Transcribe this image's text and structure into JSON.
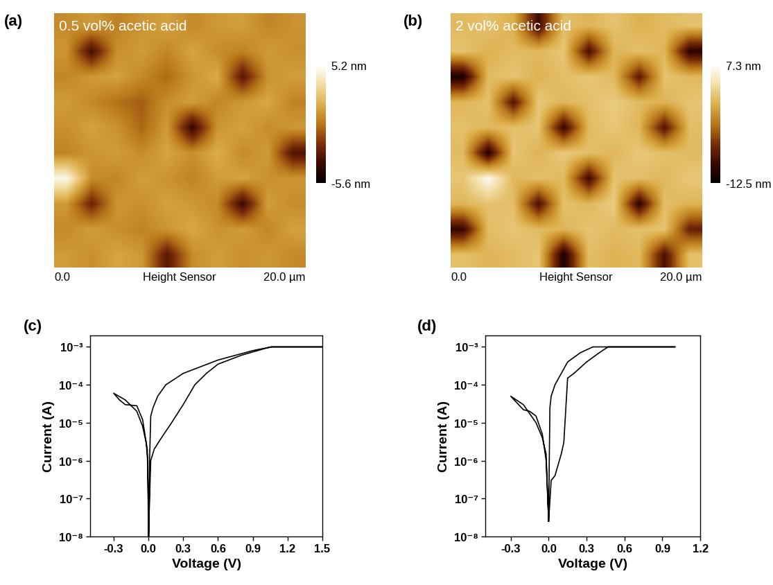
{
  "chart_data": [
    {
      "type": "heatmap",
      "panel_label": "(a)",
      "title": "0.5 vol% acetic acid",
      "x_labels": {
        "start": "0.0",
        "middle": "Height Sensor",
        "end": "20.0 µm"
      },
      "tick_labels": false,
      "xlim": [
        0,
        20
      ],
      "ylim": [
        0,
        20
      ],
      "cells": [
        [
          0.5,
          1.0,
          0.2,
          0.8,
          1.2,
          0.4,
          0.9,
          1.1,
          0.3,
          0.7
        ],
        [
          0.8,
          -3.5,
          0.6,
          1.0,
          0.3,
          1.3,
          0.5,
          0.2,
          1.0,
          0.6
        ],
        [
          0.3,
          0.9,
          1.2,
          0.4,
          -0.5,
          0.8,
          1.5,
          -3.0,
          0.7,
          1.1
        ],
        [
          1.0,
          0.4,
          -0.3,
          -0.8,
          0.6,
          1.1,
          0.3,
          0.9,
          1.4,
          0.2
        ],
        [
          0.6,
          1.2,
          0.7,
          -0.6,
          1.0,
          -4.0,
          0.8,
          1.2,
          0.5,
          0.9
        ],
        [
          0.2,
          0.8,
          1.0,
          0.5,
          1.3,
          0.6,
          1.6,
          0.4,
          1.0,
          -3.2
        ],
        [
          4.8,
          0.5,
          0.3,
          1.1,
          0.7,
          0.2,
          1.0,
          1.3,
          0.6,
          0.8
        ],
        [
          0.9,
          -2.5,
          0.8,
          0.6,
          1.2,
          0.9,
          0.4,
          -3.8,
          1.1,
          0.5
        ],
        [
          0.4,
          1.1,
          0.6,
          0.2,
          0.8,
          1.4,
          0.7,
          1.0,
          0.3,
          1.2
        ],
        [
          1.0,
          0.6,
          1.3,
          0.9,
          -3.0,
          0.5,
          1.1,
          0.6,
          0.9,
          0.4
        ]
      ],
      "colorbar_lim": [
        -5.6,
        5.2
      ],
      "colorbar_ticks": [
        {
          "value": 5.2,
          "label": "5.2 nm"
        },
        {
          "value": -5.6,
          "label": "-5.6 nm"
        }
      ]
    },
    {
      "type": "heatmap",
      "panel_label": "(b)",
      "title": "2 vol% acetic acid",
      "x_labels": {
        "start": "0.0",
        "middle": "Height Sensor",
        "end": "20.0 µm"
      },
      "tick_labels": false,
      "xlim": [
        0,
        20
      ],
      "ylim": [
        0,
        20
      ],
      "cells": [
        [
          1.5,
          2.0,
          0.8,
          -9.0,
          1.8,
          1.2,
          2.2,
          0.9,
          1.6,
          2.1
        ],
        [
          2.2,
          0.9,
          1.7,
          1.4,
          2.5,
          -8.5,
          1.1,
          2.0,
          1.3,
          -10.0
        ],
        [
          -11.0,
          1.6,
          2.3,
          1.0,
          1.9,
          2.4,
          1.5,
          -7.5,
          2.2,
          1.4
        ],
        [
          1.2,
          2.1,
          -8.0,
          2.6,
          1.3,
          2.0,
          2.8,
          1.7,
          1.0,
          2.3
        ],
        [
          2.0,
          1.4,
          1.9,
          2.3,
          -9.5,
          1.6,
          2.5,
          1.2,
          -8.0,
          1.8
        ],
        [
          1.6,
          -10.5,
          2.4,
          1.1,
          2.7,
          1.9,
          1.3,
          2.6,
          2.0,
          1.5
        ],
        [
          2.4,
          6.8,
          1.3,
          2.0,
          1.5,
          -9.0,
          2.2,
          1.8,
          1.4,
          2.6
        ],
        [
          1.3,
          2.2,
          1.8,
          -8.5,
          2.1,
          1.4,
          2.9,
          -10.0,
          1.9,
          1.1
        ],
        [
          -9.5,
          1.7,
          2.5,
          1.6,
          1.2,
          2.3,
          1.6,
          2.0,
          2.4,
          -7.0
        ],
        [
          1.9,
          1.2,
          1.6,
          2.4,
          -11.0,
          1.8,
          1.0,
          1.5,
          -8.5,
          2.0
        ]
      ],
      "colorbar_lim": [
        -12.5,
        7.3
      ],
      "colorbar_ticks": [
        {
          "value": 7.3,
          "label": "7.3 nm"
        },
        {
          "value": -12.5,
          "label": "-12.5 nm"
        }
      ]
    },
    {
      "type": "line",
      "panel_label": "(c)",
      "x_label": "Voltage (V)",
      "y_label": "Current (A)",
      "log": "y",
      "xlim": [
        -0.5,
        1.5
      ],
      "ylim": [
        1e-08,
        0.002
      ],
      "xticks": [
        -0.3,
        0.0,
        0.3,
        0.6,
        0.9,
        1.2,
        1.5
      ],
      "yticks": [
        {
          "value": 1e-08,
          "label": "10⁻⁸"
        },
        {
          "value": 1e-07,
          "label": "10⁻⁷"
        },
        {
          "value": 1e-06,
          "label": "10⁻⁶"
        },
        {
          "value": 1e-05,
          "label": "10⁻⁵"
        },
        {
          "value": 0.0001,
          "label": "10⁻⁴"
        },
        {
          "value": 0.001,
          "label": "10⁻³"
        }
      ],
      "series": [
        {
          "color": "#000000",
          "x": [
            0.0,
            0.02,
            0.05,
            0.1,
            0.2,
            0.3,
            0.4,
            0.5,
            0.6,
            0.8,
            1.0,
            1.06,
            1.5,
            1.06,
            0.9,
            0.6,
            0.3,
            0.15,
            0.08,
            0.04,
            0.02,
            0.01,
            0.005,
            -0.01,
            -0.05,
            -0.1,
            -0.2,
            -0.25,
            -0.3,
            -0.2,
            -0.1,
            -0.05,
            -0.02,
            -0.005,
            0.0
          ],
          "values": [
            1e-08,
            1e-06,
            2e-06,
            3.5e-06,
            1e-05,
            3e-05,
            0.0001,
            0.0002,
            0.00035,
            0.0006,
            0.0009,
            0.001,
            0.001,
            0.001,
            0.0008,
            0.00045,
            0.0002,
            0.0001,
            5e-05,
            2.5e-05,
            1.5e-05,
            1e-06,
            1e-08,
            2e-06,
            1.2e-05,
            2.8e-05,
            3e-05,
            4e-05,
            6e-05,
            4e-05,
            2e-05,
            8e-06,
            3e-06,
            1e-06,
            1e-08
          ]
        }
      ]
    },
    {
      "type": "line",
      "panel_label": "(d)",
      "x_label": "Voltage (V)",
      "y_label": "Current (A)",
      "log": "y",
      "xlim": [
        -0.5,
        1.2
      ],
      "ylim": [
        1e-08,
        0.002
      ],
      "xticks": [
        -0.3,
        0.0,
        0.3,
        0.6,
        0.9,
        1.2
      ],
      "yticks": [
        {
          "value": 1e-08,
          "label": "10⁻⁸"
        },
        {
          "value": 1e-07,
          "label": "10⁻⁷"
        },
        {
          "value": 1e-06,
          "label": "10⁻⁶"
        },
        {
          "value": 1e-05,
          "label": "10⁻⁵"
        },
        {
          "value": 0.0001,
          "label": "10⁻⁴"
        },
        {
          "value": 0.001,
          "label": "10⁻³"
        }
      ],
      "series": [
        {
          "color": "#000000",
          "x": [
            0.0,
            0.02,
            0.05,
            0.1,
            0.12,
            0.15,
            0.2,
            0.3,
            0.4,
            0.47,
            1.0,
            0.35,
            0.25,
            0.15,
            0.1,
            0.05,
            0.02,
            0.01,
            0.005,
            0.0,
            -0.02,
            -0.05,
            -0.1,
            -0.15,
            -0.2,
            -0.3,
            -0.2,
            -0.1,
            -0.05,
            -0.02,
            0.0
          ],
          "values": [
            2.5e-08,
            3e-07,
            4e-07,
            1.5e-06,
            3e-06,
            0.00015,
            0.0002,
            0.0004,
            0.0007,
            0.001,
            0.001,
            0.001,
            0.0007,
            0.0004,
            0.0002,
            0.0001,
            5e-05,
            2.5e-05,
            1e-06,
            2.5e-08,
            1e-06,
            5e-06,
            1.5e-05,
            2e-05,
            2.2e-05,
            5e-05,
            3e-05,
            1e-05,
            4e-06,
            1.5e-06,
            2.5e-08
          ]
        }
      ]
    }
  ]
}
